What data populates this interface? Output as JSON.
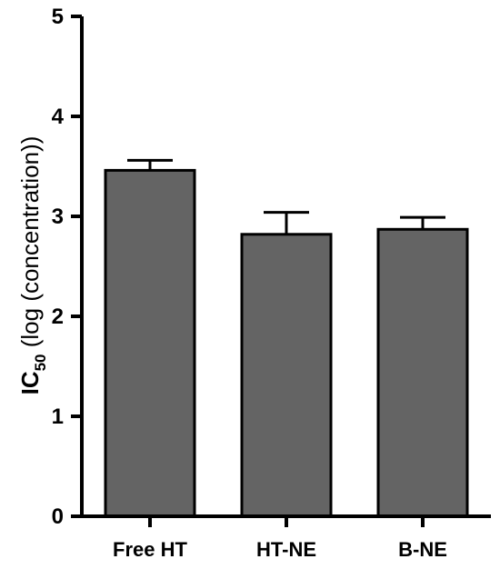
{
  "chart_data": {
    "type": "bar",
    "categories": [
      "Free HT",
      "HT-NE",
      "B-NE"
    ],
    "values": [
      3.46,
      2.82,
      2.87
    ],
    "errors": [
      0.1,
      0.22,
      0.12
    ],
    "ylim": [
      0,
      5
    ],
    "yticks": [
      "0",
      "1",
      "2",
      "3",
      "4",
      "5"
    ],
    "ylabel": {
      "main": "IC",
      "subscript": "50",
      "rest": " (log (concentration))"
    },
    "title": "",
    "xlabel": "",
    "grid": false,
    "bar_color": "#646464",
    "edge_color": "#000000"
  }
}
